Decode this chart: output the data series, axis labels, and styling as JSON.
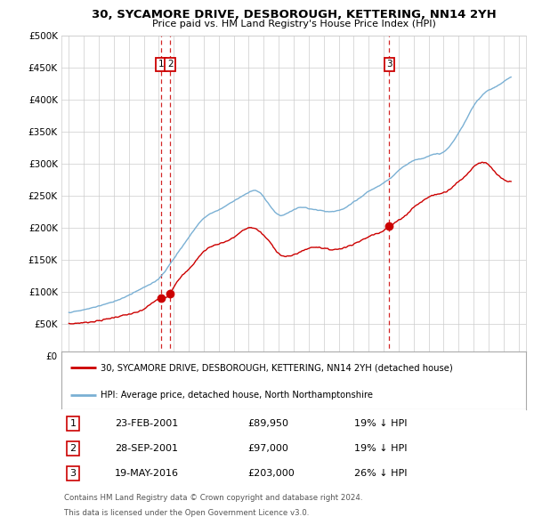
{
  "title": "30, SYCAMORE DRIVE, DESBOROUGH, KETTERING, NN14 2YH",
  "subtitle": "Price paid vs. HM Land Registry's House Price Index (HPI)",
  "legend_line1": "30, SYCAMORE DRIVE, DESBOROUGH, KETTERING, NN14 2YH (detached house)",
  "legend_line2": "HPI: Average price, detached house, North Northamptonshire",
  "footer1": "Contains HM Land Registry data © Crown copyright and database right 2024.",
  "footer2": "This data is licensed under the Open Government Licence v3.0.",
  "sales": [
    {
      "num": 1,
      "date": "23-FEB-2001",
      "price": 89950,
      "pct": "19% ↓ HPI",
      "year": 2001.14
    },
    {
      "num": 2,
      "date": "28-SEP-2001",
      "price": 97000,
      "pct": "19% ↓ HPI",
      "year": 2001.75
    },
    {
      "num": 3,
      "date": "19-MAY-2016",
      "price": 203000,
      "pct": "26% ↓ HPI",
      "year": 2016.38
    }
  ],
  "red_color": "#cc0000",
  "blue_color": "#7ab0d4",
  "dashed_color": "#cc0000",
  "background_color": "#ffffff",
  "grid_color": "#cccccc",
  "ylim": [
    0,
    500000
  ],
  "yticks": [
    0,
    50000,
    100000,
    150000,
    200000,
    250000,
    300000,
    350000,
    400000,
    450000,
    500000
  ],
  "xlim": [
    1994.5,
    2025.5
  ]
}
